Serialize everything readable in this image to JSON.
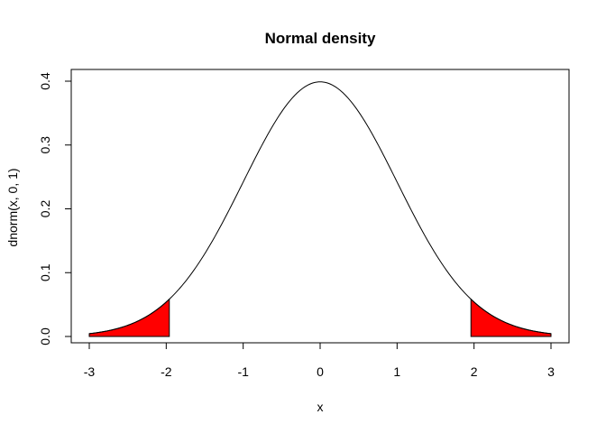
{
  "chart_data": {
    "type": "line",
    "title": "Normal density",
    "xlabel": "x",
    "ylabel": "dnorm(x, 0, 1)",
    "xlim": [
      -3,
      3
    ],
    "ylim": [
      0,
      0.4
    ],
    "x_ticks": [
      "-3",
      "-2",
      "-1",
      "0",
      "1",
      "2",
      "3"
    ],
    "y_ticks": [
      "0.0",
      "0.1",
      "0.2",
      "0.3",
      "0.4"
    ],
    "series": [
      {
        "function": "dnorm",
        "mean": 0,
        "sd": 1,
        "x_range": [
          -3,
          3
        ],
        "color": "#000000"
      }
    ],
    "shaded_regions": [
      {
        "x_range": [
          -3,
          -1.96
        ],
        "color": "#ff0000"
      },
      {
        "x_range": [
          1.96,
          3
        ],
        "color": "#ff0000"
      }
    ],
    "grid": false,
    "legend": "none"
  }
}
